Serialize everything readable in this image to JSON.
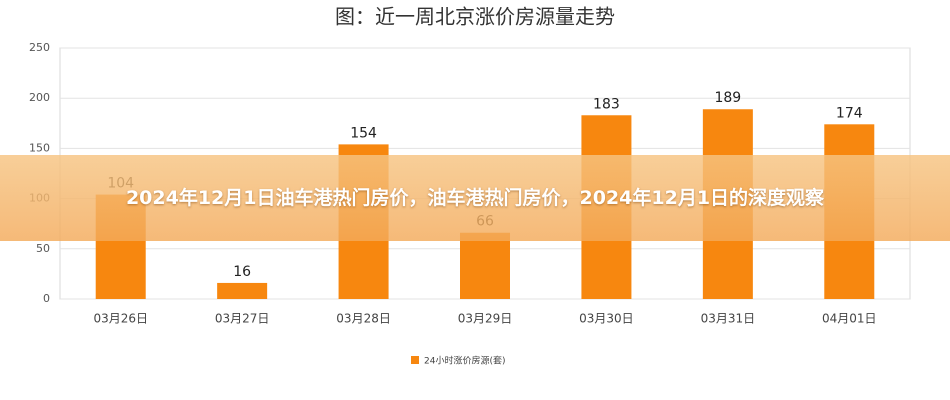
{
  "chart_data": {
    "type": "bar",
    "title": "图：近一周北京涨价房源量走势",
    "categories": [
      "03月26日",
      "03月27日",
      "03月28日",
      "03月29日",
      "03月30日",
      "03月31日",
      "04月01日"
    ],
    "series": [
      {
        "name": "24小时涨价房源(套)",
        "color": "#f7870f",
        "values": [
          104,
          16,
          154,
          66,
          183,
          189,
          174
        ]
      }
    ],
    "ylim": [
      0,
      250
    ],
    "yticks": [
      0,
      50,
      100,
      150,
      200,
      250
    ],
    "grid": true
  },
  "overlay_text": "2024年12月1日油车港热门房价，油车港热门房价，2024年12月1日的深度观察"
}
